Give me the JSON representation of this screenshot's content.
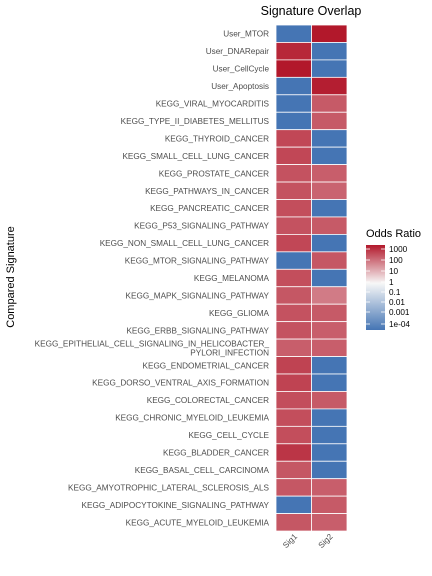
{
  "chart_data": {
    "type": "heatmap",
    "title": "Signature Overlap",
    "ylabel": "Compared Signature",
    "xlabel": "",
    "columns": [
      "Sig1",
      "Sig2"
    ],
    "rows": [
      "User_MTOR",
      "User_DNARepair",
      "User_CellCycle",
      "User_Apoptosis",
      "KEGG_VIRAL_MYOCARDITIS",
      "KEGG_TYPE_II_DIABETES_MELLITUS",
      "KEGG_THYROID_CANCER",
      "KEGG_SMALL_CELL_LUNG_CANCER",
      "KEGG_PROSTATE_CANCER",
      "KEGG_PATHWAYS_IN_CANCER",
      "KEGG_PANCREATIC_CANCER",
      "KEGG_P53_SIGNALING_PATHWAY",
      "KEGG_NON_SMALL_CELL_LUNG_CANCER",
      "KEGG_MTOR_SIGNALING_PATHWAY",
      "KEGG_MELANOMA",
      "KEGG_MAPK_SIGNALING_PATHWAY",
      "KEGG_GLIOMA",
      "KEGG_ERBB_SIGNALING_PATHWAY",
      "KEGG_EPITHELIAL_CELL_SIGNALING_IN_HELICOBACTER_\nPYLORI_INFECTION",
      "KEGG_ENDOMETRIAL_CANCER",
      "KEGG_DORSO_VENTRAL_AXIS_FORMATION",
      "KEGG_COLORECTAL_CANCER",
      "KEGG_CHRONIC_MYELOID_LEUKEMIA",
      "KEGG_CELL_CYCLE",
      "KEGG_BLADDER_CANCER",
      "KEGG_BASAL_CELL_CARCINOMA",
      "KEGG_AMYOTROPHIC_LATERAL_SCLEROSIS_ALS",
      "KEGG_ADIPOCYTOKINE_SIGNALING_PATHWAY",
      "KEGG_ACUTE_MYELOID_LEUKEMIA"
    ],
    "values": [
      [
        0.0001,
        5000
      ],
      [
        1500,
        0.0001
      ],
      [
        5000,
        0.0001
      ],
      [
        0.0001,
        3000
      ],
      [
        0.0001,
        50
      ],
      [
        0.0001,
        50
      ],
      [
        150,
        0.0001
      ],
      [
        150,
        0.0001
      ],
      [
        80,
        40
      ],
      [
        80,
        30
      ],
      [
        100,
        0.0001
      ],
      [
        80,
        50
      ],
      [
        150,
        0.0001
      ],
      [
        0.0001,
        60
      ],
      [
        100,
        0.0001
      ],
      [
        60,
        10
      ],
      [
        80,
        50
      ],
      [
        80,
        40
      ],
      [
        40,
        40
      ],
      [
        200,
        0.0001
      ],
      [
        200,
        0.0001
      ],
      [
        100,
        50
      ],
      [
        100,
        0.0001
      ],
      [
        100,
        0.0001
      ],
      [
        500,
        0.0001
      ],
      [
        60,
        0.0001
      ],
      [
        60,
        40
      ],
      [
        0.0001,
        50
      ],
      [
        60,
        40
      ]
    ],
    "colorscale": {
      "type": "log",
      "low_color": "#4575b4",
      "mid_color": "#f7f7f7",
      "high_color": "#b2182b",
      "mid_value": 1,
      "min": 0.0001,
      "max": 5000
    },
    "legend": {
      "title": "Odds Ratio",
      "labels": [
        "1000",
        "100",
        "10",
        "1",
        "0.1",
        "0.01",
        "0.001",
        "1e-04"
      ],
      "position": "right"
    }
  }
}
